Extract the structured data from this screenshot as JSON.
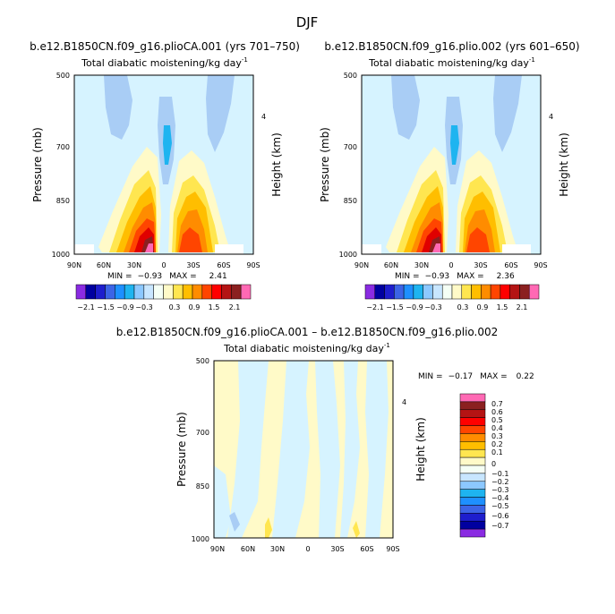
{
  "figure_title": "DJF",
  "palette": {
    "full": [
      "#8a2be2",
      "#0000a0",
      "#1e1ecd",
      "#3c64e6",
      "#1e90ff",
      "#1eb4f0",
      "#8cc8ff",
      "#c8e6ff",
      "#f5fff5",
      "#fffac8",
      "#ffe650",
      "#ffbe00",
      "#ff8c00",
      "#ff4500",
      "#ff0000",
      "#b41414",
      "#8b2020",
      "#ff69b4"
    ],
    "diff": [
      "#8a2be2",
      "#0000a0",
      "#1e1ecd",
      "#3c64e6",
      "#1e90ff",
      "#1eb4f0",
      "#8cc8ff",
      "#c8e6ff",
      "#f5fff5",
      "#fffac8",
      "#ffe650",
      "#ffbe00",
      "#ff8c00",
      "#ff4500",
      "#ff0000",
      "#b41414",
      "#8b2020",
      "#ff69b4"
    ]
  },
  "chart_data": [
    {
      "type": "heatmap",
      "title": "b.e12.B1850CN.f09_g16.plioCA.001 (yrs 701–750)",
      "subtitle": "Total diabatic moistening/kg day",
      "subtitle_sup": "-1",
      "ylabel": "Pressure (mb)",
      "ylabel_right": "Height (km)",
      "x_ticks": [
        "90N",
        "60N",
        "30N",
        "0",
        "30S",
        "60S",
        "90S"
      ],
      "y_ticks": [
        "500",
        "700",
        "850",
        "1000"
      ],
      "right_ticks": [
        "4"
      ],
      "min_label": "MIN =",
      "min_value": "−0.93",
      "max_label": "MAX =",
      "max_value": "2.41",
      "colorbar_labels": [
        "−2.1",
        "−1.5",
        "−0.9",
        "−0.3",
        "0.3",
        "0.9",
        "1.5",
        "2.1"
      ]
    },
    {
      "type": "heatmap",
      "title": "b.e12.B1850CN.f09_g16.plio.002 (yrs 601–650)",
      "subtitle": "Total diabatic moistening/kg day",
      "subtitle_sup": "-1",
      "ylabel": "Pressure (mb)",
      "ylabel_right": "Height (km)",
      "x_ticks": [
        "90N",
        "60N",
        "30N",
        "0",
        "30S",
        "60S",
        "90S"
      ],
      "y_ticks": [
        "500",
        "700",
        "850",
        "1000"
      ],
      "right_ticks": [
        "4"
      ],
      "min_label": "MIN =",
      "min_value": "−0.93",
      "max_label": "MAX =",
      "max_value": "2.36",
      "colorbar_labels": [
        "−2.1",
        "−1.5",
        "−0.9",
        "−0.3",
        "0.3",
        "0.9",
        "1.5",
        "2.1"
      ]
    },
    {
      "type": "heatmap",
      "title": "b.e12.B1850CN.f09_g16.plioCA.001 – b.e12.B1850CN.f09_g16.plio.002",
      "subtitle": "Total diabatic moistening/kg day",
      "subtitle_sup": "-1",
      "ylabel": "Pressure (mb)",
      "ylabel_right": "Height (km)",
      "x_ticks": [
        "90N",
        "60N",
        "30N",
        "0",
        "30S",
        "60S",
        "90S"
      ],
      "y_ticks": [
        "500",
        "700",
        "850",
        "1000"
      ],
      "right_ticks": [
        "4"
      ],
      "min_label": "MIN =",
      "min_value": "−0.17",
      "max_label": "MAX =",
      "max_value": "0.22",
      "colorbar_labels": [
        "0.7",
        "0.6",
        "0.5",
        "0.4",
        "0.3",
        "0.2",
        "0.1",
        "0",
        "−0.1",
        "−0.2",
        "−0.3",
        "−0.4",
        "−0.5",
        "−0.6",
        "−0.7"
      ]
    }
  ]
}
